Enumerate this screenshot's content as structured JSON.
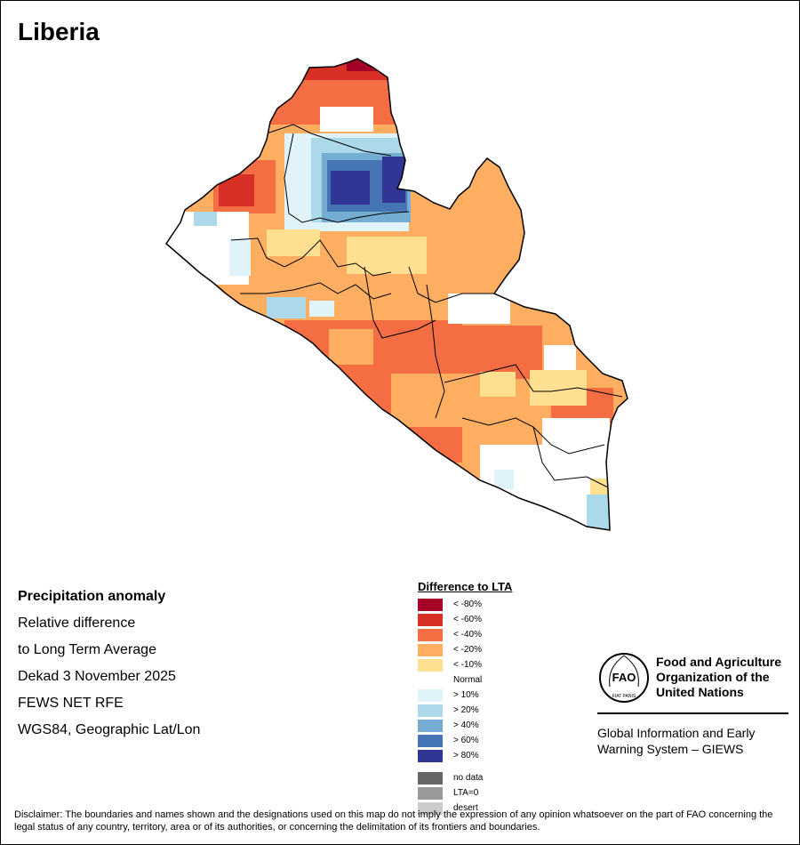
{
  "title": "Liberia",
  "info": {
    "heading": "Precipitation anomaly",
    "line1": "Relative difference",
    "line2": "to Long Term Average",
    "line3": "Dekad 3 November 2025",
    "line4": "FEWS NET RFE",
    "line5": "WGS84, Geographic Lat/Lon"
  },
  "legend": {
    "title": "Difference to LTA",
    "classes": [
      {
        "label": "< -80%",
        "color": "#a50026"
      },
      {
        "label": "< -60%",
        "color": "#d73027"
      },
      {
        "label": "< -40%",
        "color": "#f46d43"
      },
      {
        "label": "< -20%",
        "color": "#fdae61"
      },
      {
        "label": "< -10%",
        "color": "#fee090"
      },
      {
        "label": "Normal",
        "color": "#ffffff"
      },
      {
        "label": "> 10%",
        "color": "#e0f3f8"
      },
      {
        "label": "> 20%",
        "color": "#abd9e9"
      },
      {
        "label": "> 40%",
        "color": "#74add1"
      },
      {
        "label": "> 60%",
        "color": "#4575b4"
      },
      {
        "label": "> 80%",
        "color": "#313695"
      }
    ],
    "extra": [
      {
        "label": "no data",
        "color": "#666666"
      },
      {
        "label": "LTA=0",
        "color": "#999999"
      },
      {
        "label": "desert",
        "color": "#cccccc"
      }
    ]
  },
  "logo": {
    "letters": "FAO",
    "motto": "FIAT PANIS",
    "org_line1": "Food and Agriculture",
    "org_line2": "Organization of the",
    "org_line3": "United Nations",
    "giews_line1": "Global Information and Early",
    "giews_line2": "Warning System – GIEWS"
  },
  "disclaimer": "Disclaimer: The boundaries and names shown and the designations used on this map do not imply the expression of any opinion whatsoever on the part of FAO concerning the legal status of any country, territory, area or of its authorities, or concerning the delimitation of its frontiers and boundaries.",
  "map": {
    "country": "Liberia",
    "anomaly_cells_desc": "north-west dry, north-central wet, south-east mixed"
  }
}
